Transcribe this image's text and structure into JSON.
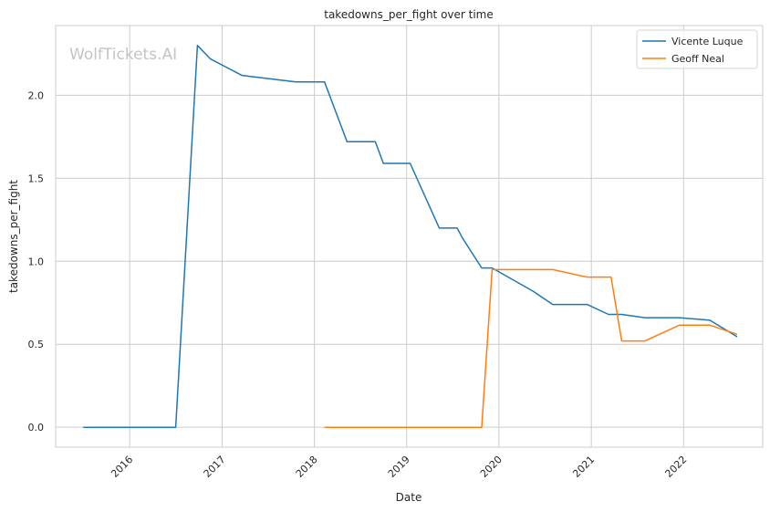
{
  "watermark": "WolfTickets.AI",
  "chart_data": {
    "type": "line",
    "title": "takedowns_per_fight over time",
    "xlabel": "Date",
    "ylabel": "takedowns_per_fight",
    "x_ticks": [
      "2016",
      "2017",
      "2018",
      "2019",
      "2020",
      "2021",
      "2022"
    ],
    "y_ticks": [
      "0.0",
      "0.5",
      "1.0",
      "1.5",
      "2.0"
    ],
    "xlim": [
      "2015-03-14",
      "2022-11-10"
    ],
    "ylim": [
      -0.12,
      2.42
    ],
    "grid": true,
    "legend_position": "top-right",
    "series": [
      {
        "name": "Vicente Luque",
        "color": "#1f77b4",
        "points": [
          [
            "2015-07-01",
            0.0
          ],
          [
            "2016-07-01",
            0.0
          ],
          [
            "2016-09-25",
            2.3
          ],
          [
            "2016-11-15",
            2.22
          ],
          [
            "2017-03-20",
            2.12
          ],
          [
            "2017-10-20",
            2.08
          ],
          [
            "2018-02-10",
            2.08
          ],
          [
            "2018-05-10",
            1.72
          ],
          [
            "2018-08-30",
            1.72
          ],
          [
            "2018-10-01",
            1.59
          ],
          [
            "2019-01-15",
            1.59
          ],
          [
            "2019-05-10",
            1.2
          ],
          [
            "2019-07-20",
            1.2
          ],
          [
            "2019-08-10",
            1.14
          ],
          [
            "2019-10-25",
            0.96
          ],
          [
            "2019-12-05",
            0.96
          ],
          [
            "2020-05-15",
            0.82
          ],
          [
            "2020-08-01",
            0.74
          ],
          [
            "2020-12-15",
            0.74
          ],
          [
            "2021-03-10",
            0.68
          ],
          [
            "2021-05-01",
            0.68
          ],
          [
            "2021-08-01",
            0.66
          ],
          [
            "2021-12-15",
            0.66
          ],
          [
            "2022-04-15",
            0.645
          ],
          [
            "2022-08-01",
            0.545
          ]
        ]
      },
      {
        "name": "Geoff Neal",
        "color": "#ff7f0e",
        "points": [
          [
            "2018-02-10",
            0.0
          ],
          [
            "2019-10-25",
            0.0
          ],
          [
            "2019-12-05",
            0.95
          ],
          [
            "2020-08-01",
            0.95
          ],
          [
            "2020-12-15",
            0.905
          ],
          [
            "2021-03-20",
            0.905
          ],
          [
            "2021-05-01",
            0.52
          ],
          [
            "2021-08-01",
            0.52
          ],
          [
            "2021-12-15",
            0.615
          ],
          [
            "2022-04-15",
            0.615
          ],
          [
            "2022-08-01",
            0.56
          ]
        ]
      }
    ]
  }
}
